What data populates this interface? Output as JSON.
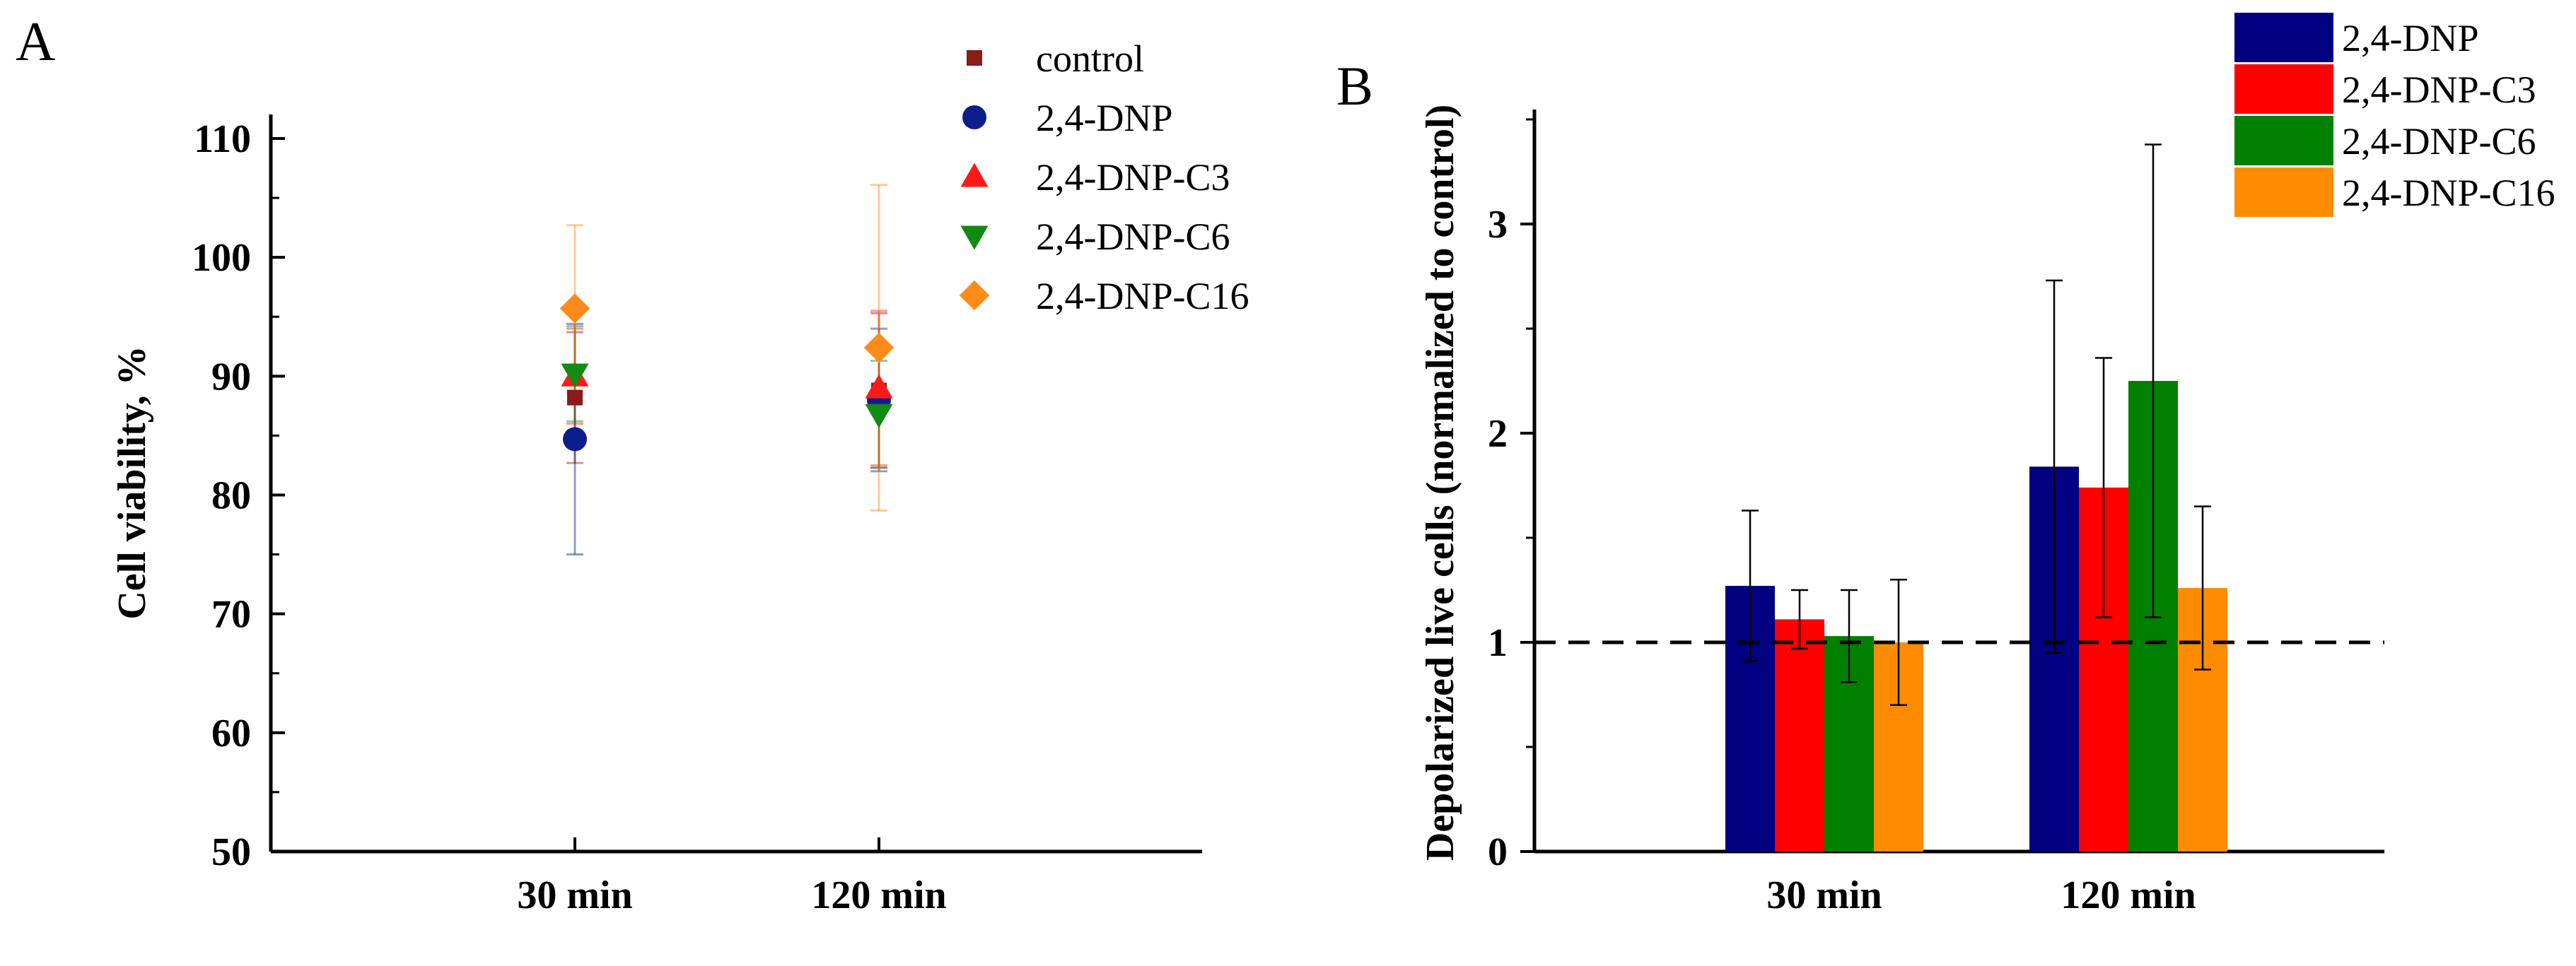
{
  "chart_data": [
    {
      "panel_label": "A",
      "type": "scatter",
      "ylabel": "Cell viability, %",
      "ylim": [
        50,
        110
      ],
      "yticks": [
        "50",
        "60",
        "70",
        "80",
        "90",
        "100",
        "110"
      ],
      "categories": [
        "30 min",
        "120 min"
      ],
      "series": [
        {
          "name": "control",
          "marker": "square",
          "color": "#8b1a1a",
          "values": [
            88.2,
            88.8
          ],
          "err": [
            5.5,
            6.5
          ]
        },
        {
          "name": "2,4-DNP",
          "marker": "circle",
          "color": "#0b1e8c",
          "values": [
            84.7,
            88.0
          ],
          "err": [
            9.7,
            6.0
          ]
        },
        {
          "name": "2,4-DNP-C3",
          "marker": "triangle-up",
          "color": "#ff1a1a",
          "values": [
            90.0,
            89.0
          ],
          "err": [
            4.0,
            6.5
          ]
        },
        {
          "name": "2,4-DNP-C6",
          "marker": "triangle-down",
          "color": "#138a13",
          "values": [
            90.2,
            86.8
          ],
          "err": [
            4.0,
            4.5
          ]
        },
        {
          "name": "2,4-DNP-C16",
          "marker": "diamond",
          "color": "#ff8c1a",
          "values": [
            95.7,
            92.4
          ],
          "err": [
            7.0,
            13.7
          ]
        }
      ],
      "legend_position": "top-right"
    },
    {
      "panel_label": "B",
      "type": "bar",
      "ylabel": "Depolarized live cells (normalized to control)",
      "ylim": [
        0,
        3.5
      ],
      "yticks": [
        "0",
        "1",
        "2",
        "3"
      ],
      "categories": [
        "30 min",
        "120 min"
      ],
      "reference_line": 1,
      "series": [
        {
          "name": "2,4-DNP",
          "color": "#000080",
          "values": [
            1.27,
            1.84
          ],
          "err": [
            0.36,
            0.89
          ]
        },
        {
          "name": "2,4-DNP-C3",
          "color": "#ff0000",
          "values": [
            1.11,
            1.74
          ],
          "err": [
            0.14,
            0.62
          ]
        },
        {
          "name": "2,4-DNP-C6",
          "color": "#008000",
          "values": [
            1.03,
            2.25
          ],
          "err": [
            0.22,
            1.13
          ]
        },
        {
          "name": "2,4-DNP-C16",
          "color": "#ff8c00",
          "values": [
            1.0,
            1.26
          ],
          "err": [
            0.3,
            0.39
          ]
        }
      ],
      "legend_position": "top-right"
    }
  ]
}
